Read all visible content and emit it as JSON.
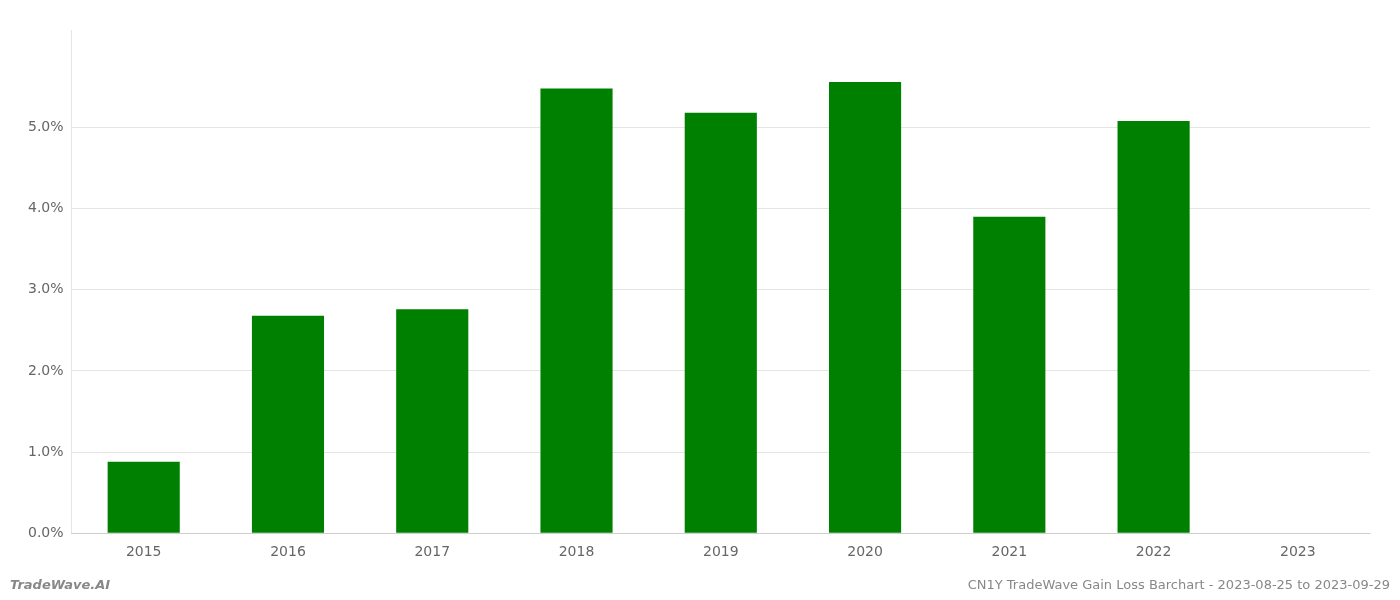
{
  "chart_data": {
    "type": "bar",
    "categories": [
      "2015",
      "2016",
      "2017",
      "2018",
      "2019",
      "2020",
      "2021",
      "2022",
      "2023"
    ],
    "values": [
      0.0088,
      0.0268,
      0.0276,
      0.0548,
      0.0518,
      0.0556,
      0.039,
      0.0508,
      null
    ],
    "color": "#008000",
    "ylim": [
      0.0,
      0.062
    ],
    "yticks": [
      {
        "value": 0.0,
        "label": "0.0%"
      },
      {
        "value": 0.01,
        "label": "1.0%"
      },
      {
        "value": 0.02,
        "label": "2.0%"
      },
      {
        "value": 0.03,
        "label": "3.0%"
      },
      {
        "value": 0.04,
        "label": "4.0%"
      },
      {
        "value": 0.05,
        "label": "5.0%"
      }
    ],
    "grid": true,
    "annotations": [
      "TradeWave.AI",
      "CN1Y TradeWave Gain Loss Barchart - 2023-08-25 to 2023-09-29"
    ]
  }
}
